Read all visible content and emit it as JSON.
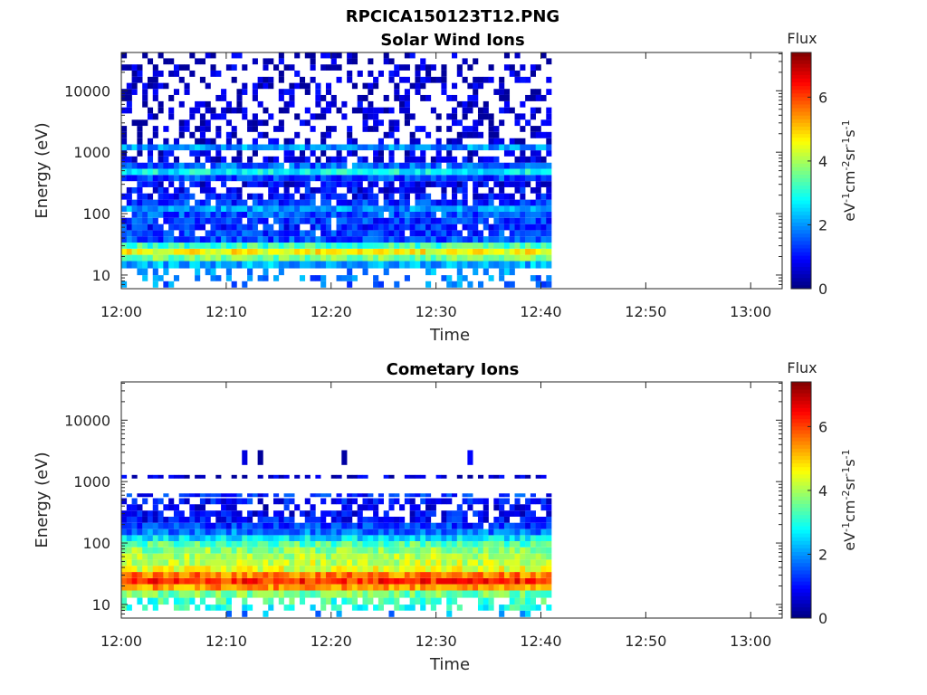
{
  "figure_title": "RPCICA150123T12.PNG",
  "colorbar": {
    "label": "Flux",
    "unit_text": "eV-1cm-2sr-1s-1",
    "min": 0,
    "max": 7.4,
    "ticks": [
      "0",
      "2",
      "4",
      "6"
    ],
    "colormap": "jet"
  },
  "time_ticks": [
    "12:00",
    "12:10",
    "12:20",
    "12:30",
    "12:40",
    "12:50",
    "13:00"
  ],
  "energy_ticks": [
    "10",
    "100",
    "1000",
    "10000"
  ],
  "chart_data": [
    {
      "type": "heatmap",
      "title": "Solar Wind Ions",
      "xlabel": "Time",
      "ylabel": "Energy (eV)",
      "xlim": [
        "12:00",
        "13:03"
      ],
      "ylim": [
        6,
        42000
      ],
      "y_scale": "log",
      "x_data_end": "12:41",
      "color_label": "Flux",
      "profile": [
        {
          "energy": 7,
          "flux": 1.8,
          "fill": 0.25
        },
        {
          "energy": 9,
          "flux": 1.8,
          "fill": 0.4
        },
        {
          "energy": 11,
          "flux": 2.0,
          "fill": 0.35
        },
        {
          "energy": 15,
          "flux": 2.2,
          "fill": 1.0
        },
        {
          "energy": 19,
          "flux": 3.6,
          "fill": 1.0
        },
        {
          "energy": 24,
          "flux": 4.6,
          "fill": 1.0
        },
        {
          "energy": 30,
          "flux": 3.2,
          "fill": 1.0
        },
        {
          "energy": 38,
          "flux": 1.5,
          "fill": 1.0
        },
        {
          "energy": 48,
          "flux": 1.3,
          "fill": 0.9
        },
        {
          "energy": 60,
          "flux": 1.2,
          "fill": 0.9
        },
        {
          "energy": 76,
          "flux": 1.3,
          "fill": 0.9
        },
        {
          "energy": 96,
          "flux": 1.5,
          "fill": 0.95
        },
        {
          "energy": 120,
          "flux": 2.0,
          "fill": 1.0
        },
        {
          "energy": 150,
          "flux": 1.3,
          "fill": 0.9
        },
        {
          "energy": 190,
          "flux": 1.0,
          "fill": 0.75
        },
        {
          "energy": 240,
          "flux": 0.9,
          "fill": 0.7
        },
        {
          "energy": 300,
          "flux": 0.8,
          "fill": 0.65
        },
        {
          "energy": 380,
          "flux": 1.4,
          "fill": 1.0
        },
        {
          "energy": 480,
          "flux": 2.8,
          "fill": 1.0
        },
        {
          "energy": 600,
          "flux": 1.6,
          "fill": 0.95
        },
        {
          "energy": 760,
          "flux": 0.7,
          "fill": 0.6
        },
        {
          "energy": 960,
          "flux": 0.6,
          "fill": 0.5
        },
        {
          "energy": 1200,
          "flux": 2.0,
          "fill": 1.0
        },
        {
          "energy": 1500,
          "flux": 0.5,
          "fill": 0.5
        },
        {
          "energy": 1900,
          "flux": 0.5,
          "fill": 0.45
        },
        {
          "energy": 2400,
          "flux": 0.5,
          "fill": 0.4
        },
        {
          "energy": 3000,
          "flux": 0.5,
          "fill": 0.45
        },
        {
          "energy": 3800,
          "flux": 0.5,
          "fill": 0.4
        },
        {
          "energy": 4800,
          "flux": 0.5,
          "fill": 0.45
        },
        {
          "energy": 6000,
          "flux": 0.5,
          "fill": 0.4
        },
        {
          "energy": 7600,
          "flux": 0.5,
          "fill": 0.35
        },
        {
          "energy": 9600,
          "flux": 0.5,
          "fill": 0.4
        },
        {
          "energy": 12000,
          "flux": 0.5,
          "fill": 0.35
        },
        {
          "energy": 15000,
          "flux": 0.5,
          "fill": 0.4
        },
        {
          "energy": 19000,
          "flux": 0.5,
          "fill": 0.3
        },
        {
          "energy": 24000,
          "flux": 0.5,
          "fill": 0.4
        },
        {
          "energy": 30000,
          "flux": 0.5,
          "fill": 0.35
        },
        {
          "energy": 38000,
          "flux": 0.5,
          "fill": 0.3
        }
      ]
    },
    {
      "type": "heatmap",
      "title": "Cometary Ions",
      "xlabel": "Time",
      "ylabel": "Energy (eV)",
      "xlim": [
        "12:00",
        "13:03"
      ],
      "ylim": [
        6,
        42000
      ],
      "y_scale": "log",
      "x_data_end": "12:41",
      "color_label": "Flux",
      "profile": [
        {
          "energy": 7,
          "flux": 2.0,
          "fill": 0.15
        },
        {
          "energy": 9,
          "flux": 3.0,
          "fill": 0.6
        },
        {
          "energy": 11,
          "flux": 3.2,
          "fill": 0.6
        },
        {
          "energy": 15,
          "flux": 3.6,
          "fill": 1.0
        },
        {
          "energy": 19,
          "flux": 5.4,
          "fill": 1.0
        },
        {
          "energy": 24,
          "flux": 6.2,
          "fill": 1.0
        },
        {
          "energy": 30,
          "flux": 5.6,
          "fill": 1.0
        },
        {
          "energy": 38,
          "flux": 4.4,
          "fill": 1.0
        },
        {
          "energy": 48,
          "flux": 4.2,
          "fill": 1.0
        },
        {
          "energy": 60,
          "flux": 4.0,
          "fill": 1.0
        },
        {
          "energy": 76,
          "flux": 3.8,
          "fill": 1.0
        },
        {
          "energy": 96,
          "flux": 3.4,
          "fill": 1.0
        },
        {
          "energy": 120,
          "flux": 2.6,
          "fill": 1.0
        },
        {
          "energy": 150,
          "flux": 1.8,
          "fill": 1.0
        },
        {
          "energy": 190,
          "flux": 1.3,
          "fill": 0.95
        },
        {
          "energy": 240,
          "flux": 1.0,
          "fill": 0.8
        },
        {
          "energy": 300,
          "flux": 0.9,
          "fill": 0.7
        },
        {
          "energy": 380,
          "flux": 0.8,
          "fill": 0.55
        },
        {
          "energy": 480,
          "flux": 1.0,
          "fill": 0.75
        },
        {
          "energy": 600,
          "flux": 1.2,
          "fill": 0.6
        },
        {
          "energy": 1200,
          "flux": 0.5,
          "fill": 0.6
        },
        {
          "energy": 2900,
          "flux": 0.5,
          "fill": 0.05
        }
      ]
    }
  ]
}
